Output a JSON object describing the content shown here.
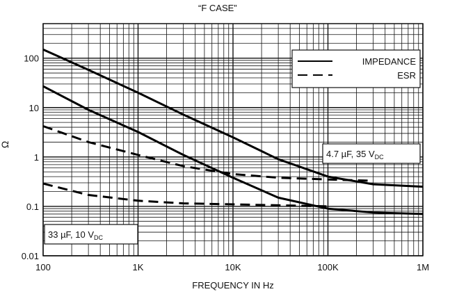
{
  "chart_data": {
    "type": "line",
    "title": "“F CASE”",
    "xlabel": "FREQUENCY IN Hz",
    "ylabel": "Ω",
    "xscale": "log",
    "yscale": "log",
    "xlim": [
      100,
      1000000
    ],
    "ylim": [
      0.01,
      500
    ],
    "grid": true,
    "x_tick_labels": [
      "100",
      "1K",
      "10K",
      "100K",
      "1M"
    ],
    "x_ticks": [
      100,
      1000,
      10000,
      100000,
      1000000
    ],
    "y_tick_labels": [
      "0.01",
      "0.1",
      "1",
      "10",
      "100"
    ],
    "y_ticks": [
      0.01,
      0.1,
      1,
      10,
      100
    ],
    "legend": {
      "placement": "top-right",
      "entries": [
        {
          "label": "IMPEDANCE",
          "style": "solid"
        },
        {
          "label": "ESR",
          "style": "dashed"
        }
      ]
    },
    "annotations": [
      {
        "id": "small",
        "text": "4.7 µF, 35 V",
        "subscript": "DC"
      },
      {
        "id": "large",
        "text": "33 µF, 10 V",
        "subscript": "DC"
      }
    ],
    "series": [
      {
        "curve": "impedance",
        "style": "solid",
        "annotation": "4.7 µF, 35 V",
        "x": [
          100,
          300,
          1000,
          3000,
          10000,
          30000,
          100000,
          300000,
          1000000
        ],
        "y": [
          150,
          58,
          20,
          7.2,
          2.5,
          0.9,
          0.4,
          0.28,
          0.25
        ]
      },
      {
        "curve": "impedance",
        "style": "solid",
        "annotation": "33 µF, 10 V",
        "x": [
          100,
          300,
          1000,
          3000,
          10000,
          30000,
          100000,
          300000,
          1000000
        ],
        "y": [
          27,
          9,
          3.2,
          1.1,
          0.38,
          0.15,
          0.09,
          0.075,
          0.07
        ]
      },
      {
        "curve": "esr",
        "style": "dashed",
        "annotation": "4.7 µF, 35 V",
        "x": [
          100,
          300,
          1000,
          3000,
          10000,
          30000,
          100000,
          300000
        ],
        "y": [
          4.2,
          2.0,
          1.1,
          0.65,
          0.45,
          0.38,
          0.35,
          0.33
        ]
      },
      {
        "curve": "esr",
        "style": "dashed",
        "annotation": "33 µF, 10 V",
        "x": [
          100,
          300,
          1000,
          3000,
          10000,
          30000,
          100000
        ],
        "y": [
          0.29,
          0.17,
          0.13,
          0.115,
          0.11,
          0.105,
          0.1
        ]
      }
    ]
  }
}
